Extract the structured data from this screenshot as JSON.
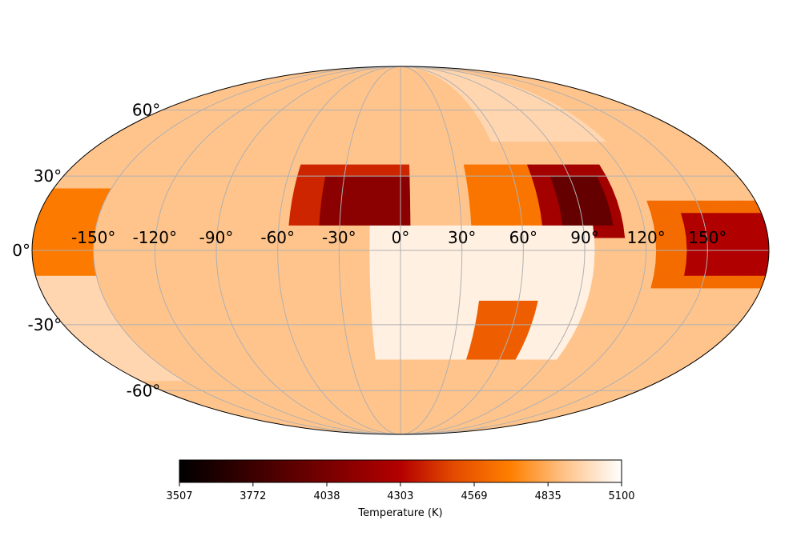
{
  "chart_data": {
    "type": "heatmap",
    "projection": "mollweide",
    "grid": true,
    "lon_ticks": [
      -150,
      -120,
      -90,
      -60,
      -30,
      0,
      30,
      60,
      90,
      120,
      150
    ],
    "lon_tick_labels": [
      "-150°",
      "-120°",
      "-90°",
      "-60°",
      "-30°",
      "0°",
      "30°",
      "60°",
      "90°",
      "120°",
      "150°"
    ],
    "lat_ticks": [
      -60,
      -30,
      0,
      30,
      60
    ],
    "lat_tick_labels": [
      "-60°",
      "-30°",
      "0°",
      "30°",
      "60°"
    ],
    "background_value": 4900,
    "features": [
      {
        "kind": "rect",
        "lon": [
          -55,
          5
        ],
        "lat": [
          8,
          33
        ],
        "value": 4400
      },
      {
        "kind": "rect",
        "lon": [
          -40,
          3
        ],
        "lat": [
          11,
          29
        ],
        "value": 4120
      },
      {
        "kind": "rect",
        "lon": [
          35,
          95
        ],
        "lat": [
          8,
          33
        ],
        "value": 4660
      },
      {
        "kind": "rect",
        "lon": [
          70,
          110
        ],
        "lat": [
          7,
          37
        ],
        "value": 4230
      },
      {
        "kind": "rect",
        "lon": [
          78,
          107
        ],
        "lat": [
          12,
          30
        ],
        "value": 3950
      },
      {
        "kind": "rect",
        "lon": [
          125,
          180
        ],
        "lat": [
          -15,
          20
        ],
        "value": 4620
      },
      {
        "kind": "rect",
        "lon": [
          -180,
          -150
        ],
        "lat": [
          -10,
          25
        ],
        "value": 4680
      },
      {
        "kind": "rect",
        "lon": [
          138,
          180
        ],
        "lat": [
          -12,
          13
        ],
        "value": 4290
      },
      {
        "kind": "rect",
        "lon": [
          -15,
          95
        ],
        "lat": [
          -45,
          8
        ],
        "value": 5050
      },
      {
        "kind": "rect",
        "lon": [
          42,
          72
        ],
        "lat": [
          -45,
          -20
        ],
        "value": 4570
      },
      {
        "kind": "rect",
        "lon": [
          55,
          125
        ],
        "lat": [
          45,
          90
        ],
        "value": 4960
      },
      {
        "kind": "rect",
        "lon": [
          -180,
          -150
        ],
        "lat": [
          -55,
          -10
        ],
        "value": 4960
      }
    ],
    "colormap": "gist_heat",
    "colorbar": {
      "label": "Temperature (K)",
      "min": 3507,
      "max": 5100,
      "ticks": [
        3507,
        3772,
        4038,
        4303,
        4569,
        4835,
        5100
      ],
      "tick_labels": [
        "3507",
        "3772",
        "4038",
        "4303",
        "4569",
        "4835",
        "5100"
      ]
    }
  }
}
